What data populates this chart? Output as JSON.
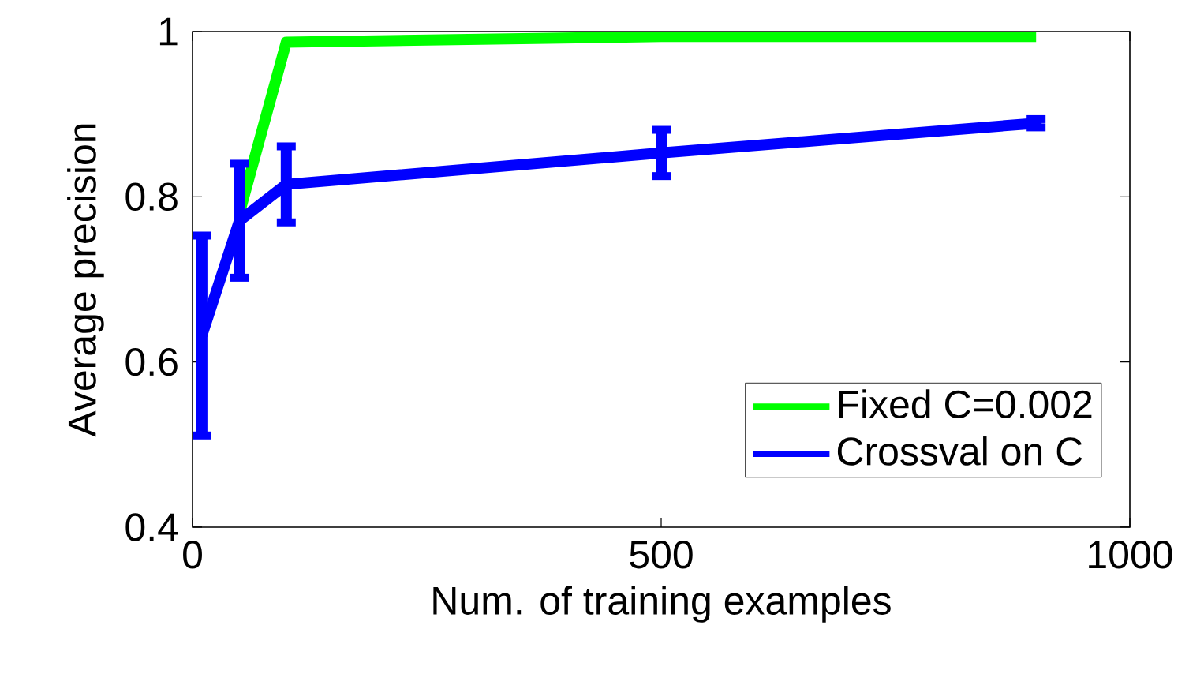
{
  "chart_data": {
    "type": "line",
    "xlabel": "Num. of training examples",
    "ylabel": "Average precision",
    "x": [
      10,
      50,
      100,
      500,
      900
    ],
    "series": [
      {
        "name": "Fixed C=0.002",
        "color": "#00ff00",
        "values": [
          null,
          0.78,
          0.987,
          0.994,
          0.994
        ]
      },
      {
        "name": "Crossval on C",
        "color": "#0000ff",
        "values": [
          0.632,
          0.771,
          0.815,
          0.853,
          0.889
        ],
        "errors": [
          0.121,
          0.069,
          0.046,
          0.028,
          0.005
        ]
      }
    ],
    "xlim": [
      0,
      1000
    ],
    "ylim": [
      0.4,
      1
    ],
    "xticks": [
      0,
      500,
      1000
    ],
    "yticks": [
      0.4,
      0.6,
      0.8,
      1
    ],
    "legend": "bottom right",
    "line_style": "solid",
    "grid": false
  }
}
